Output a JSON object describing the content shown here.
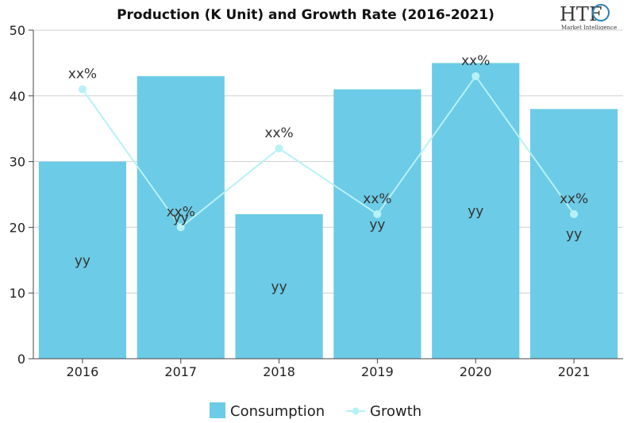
{
  "logo": {
    "text": "HTF",
    "tagline": "Market Intelligence"
  },
  "chart_data": {
    "type": "bar",
    "title": "Production (K Unit) and Growth Rate (2016-2021)",
    "xlabel": "",
    "ylabel": "",
    "categories": [
      "2016",
      "2017",
      "2018",
      "2019",
      "2020",
      "2021"
    ],
    "ylim": [
      0,
      50
    ],
    "yticks": [
      0,
      10,
      20,
      30,
      40,
      50
    ],
    "grid": true,
    "legend": "bottom",
    "series": [
      {
        "name": "Consumption",
        "type": "bar",
        "color": "#6ccbe6",
        "values": [
          30,
          43,
          22,
          41,
          45,
          38
        ],
        "labels": [
          "yy",
          "yy",
          "yy",
          "yy",
          "yy",
          "yy"
        ]
      },
      {
        "name": "Growth",
        "type": "line",
        "color": "#b7f1f5",
        "values": [
          41,
          20,
          32,
          22,
          43,
          22
        ],
        "labels": [
          "xx%",
          "xx%",
          "xx%",
          "xx%",
          "xx%",
          "xx%"
        ]
      }
    ]
  }
}
